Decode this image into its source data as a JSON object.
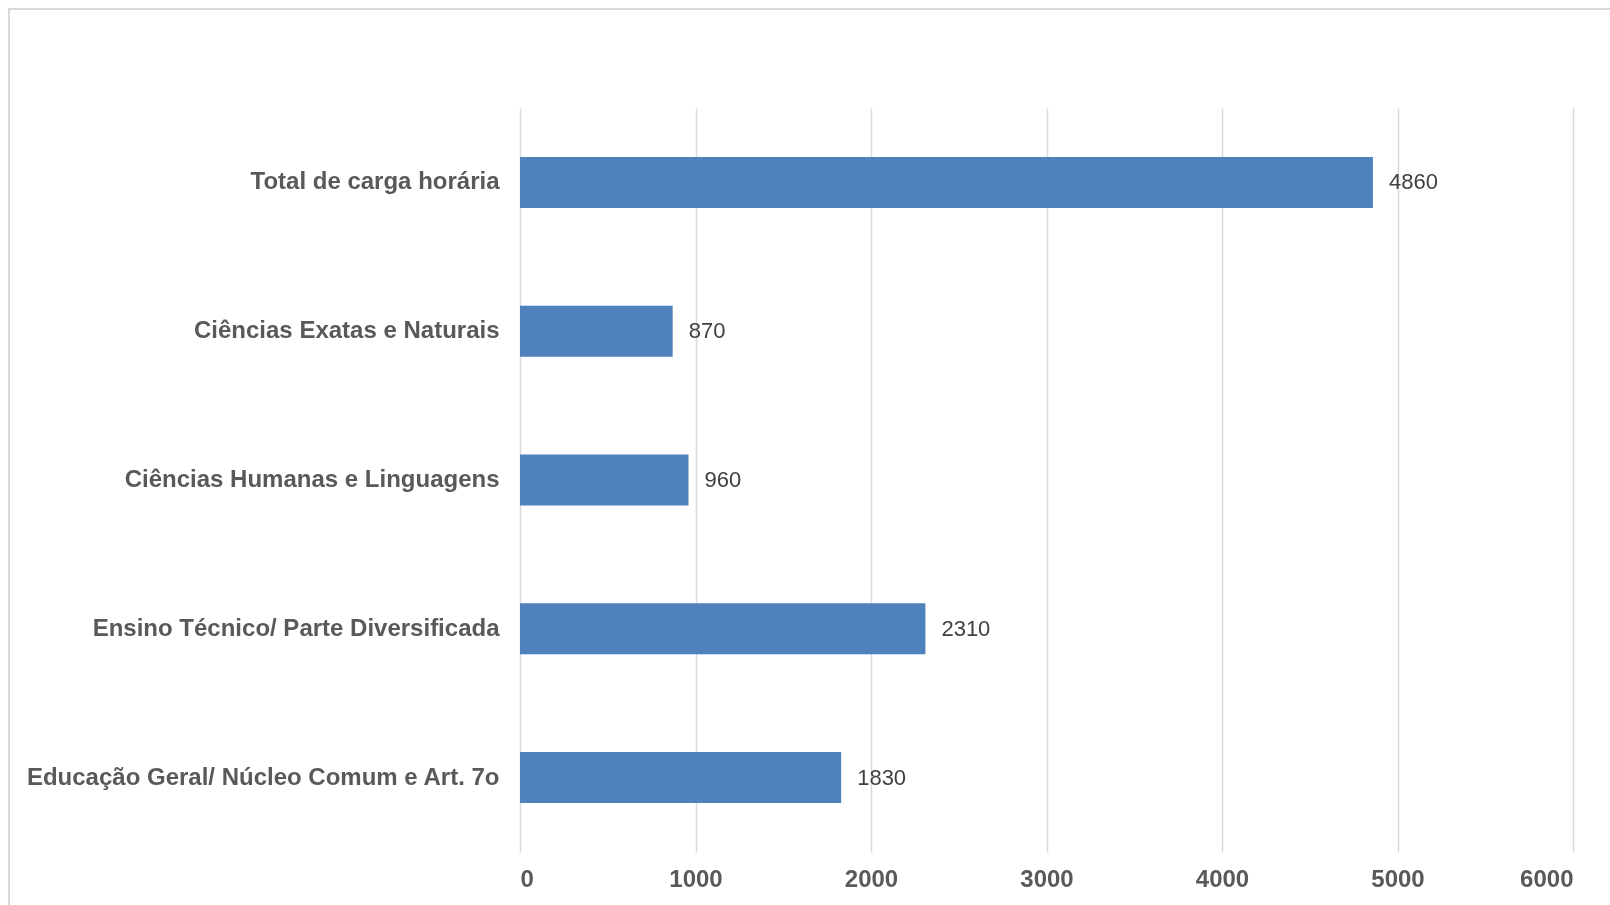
{
  "chart_data": {
    "type": "bar",
    "orientation": "horizontal",
    "categories": [
      "Total de carga horária",
      "Ciências Exatas e Naturais",
      "Ciências Humanas e Linguagens",
      "Ensino Técnico/ Parte Diversificada",
      "Educação Geral/ Núcleo Comum e Art. 7o"
    ],
    "values": [
      4860,
      870,
      960,
      2310,
      1830
    ],
    "color": "#4f81bd",
    "xlim": [
      0,
      6000
    ],
    "xticks": [
      0,
      1000,
      2000,
      3000,
      4000,
      5000,
      6000
    ],
    "grid": "x",
    "data_labels": true
  }
}
